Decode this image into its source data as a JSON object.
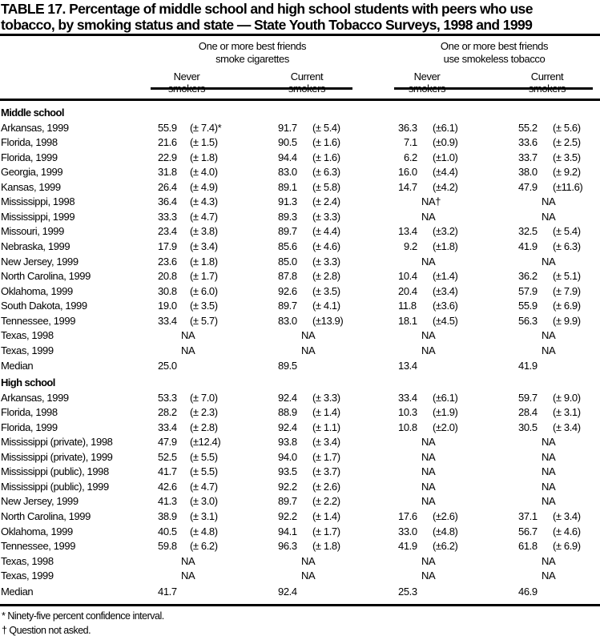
{
  "title_line1": "TABLE 17.  Percentage of middle school and high school students with peers who use",
  "title_line2": "tobacco, by smoking status and state — State Youth Tobacco Surveys, 1998 and 1999",
  "group_headers": [
    {
      "line1": "One or more best friends",
      "line2": "smoke cigarettes"
    },
    {
      "line1": "One or more best friends",
      "line2": "use smokeless tobacco"
    }
  ],
  "column_headers": [
    {
      "top": "Never",
      "bottom": "smokers"
    },
    {
      "top": "Current",
      "bottom": "smokers"
    },
    {
      "top": "Never",
      "bottom": "smokers"
    },
    {
      "top": "Current",
      "bottom": "smokers"
    }
  ],
  "sections": [
    {
      "label": "Middle school",
      "rows": [
        {
          "label": "Arkansas, 1999",
          "cells": [
            {
              "v": "55.9",
              "ci": "(± 7.4)*"
            },
            {
              "v": "91.7",
              "ci": "(± 5.4)"
            },
            {
              "v": "36.3",
              "ci": "(±6.1)"
            },
            {
              "v": "55.2",
              "ci": "(± 5.6)"
            }
          ]
        },
        {
          "label": "Florida, 1998",
          "cells": [
            {
              "v": "21.6",
              "ci": "(± 1.5)"
            },
            {
              "v": "90.5",
              "ci": "(± 1.6)"
            },
            {
              "v": "7.1",
              "ci": "(±0.9)"
            },
            {
              "v": "33.6",
              "ci": "(± 2.5)"
            }
          ]
        },
        {
          "label": "Florida, 1999",
          "cells": [
            {
              "v": "22.9",
              "ci": "(± 1.8)"
            },
            {
              "v": "94.4",
              "ci": "(± 1.6)"
            },
            {
              "v": "6.2",
              "ci": "(±1.0)"
            },
            {
              "v": "33.7",
              "ci": "(± 3.5)"
            }
          ]
        },
        {
          "label": "Georgia, 1999",
          "cells": [
            {
              "v": "31.8",
              "ci": "(± 4.0)"
            },
            {
              "v": "83.0",
              "ci": "(± 6.3)"
            },
            {
              "v": "16.0",
              "ci": "(±4.4)"
            },
            {
              "v": "38.0",
              "ci": "(± 9.2)"
            }
          ]
        },
        {
          "label": "Kansas, 1999",
          "cells": [
            {
              "v": "26.4",
              "ci": "(± 4.9)"
            },
            {
              "v": "89.1",
              "ci": "(± 5.8)"
            },
            {
              "v": "14.7",
              "ci": "(±4.2)"
            },
            {
              "v": "47.9",
              "ci": "(±11.6)"
            }
          ]
        },
        {
          "label": "Mississippi, 1998",
          "cells": [
            {
              "v": "36.4",
              "ci": "(± 4.3)"
            },
            {
              "v": "91.3",
              "ci": "(± 2.4)"
            },
            {
              "na": "NA†"
            },
            {
              "na": "NA"
            }
          ]
        },
        {
          "label": "Mississippi, 1999",
          "cells": [
            {
              "v": "33.3",
              "ci": "(± 4.7)"
            },
            {
              "v": "89.3",
              "ci": "(± 3.3)"
            },
            {
              "na": "NA"
            },
            {
              "na": "NA"
            }
          ]
        },
        {
          "label": "Missouri, 1999",
          "cells": [
            {
              "v": "23.4",
              "ci": "(± 3.8)"
            },
            {
              "v": "89.7",
              "ci": "(± 4.4)"
            },
            {
              "v": "13.4",
              "ci": "(±3.2)"
            },
            {
              "v": "32.5",
              "ci": "(± 5.4)"
            }
          ]
        },
        {
          "label": "Nebraska, 1999",
          "cells": [
            {
              "v": "17.9",
              "ci": "(± 3.4)"
            },
            {
              "v": "85.6",
              "ci": "(± 4.6)"
            },
            {
              "v": "9.2",
              "ci": "(±1.8)"
            },
            {
              "v": "41.9",
              "ci": "(± 6.3)"
            }
          ]
        },
        {
          "label": "New Jersey, 1999",
          "cells": [
            {
              "v": "23.6",
              "ci": "(± 1.8)"
            },
            {
              "v": "85.0",
              "ci": "(± 3.3)"
            },
            {
              "na": "NA"
            },
            {
              "na": "NA"
            }
          ]
        },
        {
          "label": "North Carolina, 1999",
          "cells": [
            {
              "v": "20.8",
              "ci": "(± 1.7)"
            },
            {
              "v": "87.8",
              "ci": "(± 2.8)"
            },
            {
              "v": "10.4",
              "ci": "(±1.4)"
            },
            {
              "v": "36.2",
              "ci": "(± 5.1)"
            }
          ]
        },
        {
          "label": "Oklahoma, 1999",
          "cells": [
            {
              "v": "30.8",
              "ci": "(± 6.0)"
            },
            {
              "v": "92.6",
              "ci": "(± 3.5)"
            },
            {
              "v": "20.4",
              "ci": "(±3.4)"
            },
            {
              "v": "57.9",
              "ci": "(± 7.9)"
            }
          ]
        },
        {
          "label": "South Dakota, 1999",
          "cells": [
            {
              "v": "19.0",
              "ci": "(± 3.5)"
            },
            {
              "v": "89.7",
              "ci": "(± 4.1)"
            },
            {
              "v": "11.8",
              "ci": "(±3.6)"
            },
            {
              "v": "55.9",
              "ci": "(± 6.9)"
            }
          ]
        },
        {
          "label": "Tennessee, 1999",
          "cells": [
            {
              "v": "33.4",
              "ci": "(± 5.7)"
            },
            {
              "v": "83.0",
              "ci": "(±13.9)"
            },
            {
              "v": "18.1",
              "ci": "(±4.5)"
            },
            {
              "v": "56.3",
              "ci": "(± 9.9)"
            }
          ]
        },
        {
          "label": "Texas, 1998",
          "cells": [
            {
              "na": "NA"
            },
            {
              "na": "NA"
            },
            {
              "na": "NA"
            },
            {
              "na": "NA"
            }
          ]
        },
        {
          "label": "Texas, 1999",
          "cells": [
            {
              "na": "NA"
            },
            {
              "na": "NA"
            },
            {
              "na": "NA"
            },
            {
              "na": "NA"
            }
          ]
        },
        {
          "label": "Median",
          "cells": [
            {
              "v": "25.0"
            },
            {
              "v": "89.5"
            },
            {
              "v": "13.4"
            },
            {
              "v": "41.9"
            }
          ]
        }
      ]
    },
    {
      "label": "High school",
      "rows": [
        {
          "label": "Arkansas, 1999",
          "cells": [
            {
              "v": "53.3",
              "ci": "(± 7.0)"
            },
            {
              "v": "92.4",
              "ci": "(± 3.3)"
            },
            {
              "v": "33.4",
              "ci": "(±6.1)"
            },
            {
              "v": "59.7",
              "ci": "(± 9.0)"
            }
          ]
        },
        {
          "label": "Florida, 1998",
          "cells": [
            {
              "v": "28.2",
              "ci": "(± 2.3)"
            },
            {
              "v": "88.9",
              "ci": "(± 1.4)"
            },
            {
              "v": "10.3",
              "ci": "(±1.9)"
            },
            {
              "v": "28.4",
              "ci": "(± 3.1)"
            }
          ]
        },
        {
          "label": "Florida, 1999",
          "cells": [
            {
              "v": "33.4",
              "ci": "(± 2.8)"
            },
            {
              "v": "92.4",
              "ci": "(± 1.1)"
            },
            {
              "v": "10.8",
              "ci": "(±2.0)"
            },
            {
              "v": "30.5",
              "ci": "(± 3.4)"
            }
          ]
        },
        {
          "label": "Mississippi (private), 1998",
          "cells": [
            {
              "v": "47.9",
              "ci": "(±12.4)"
            },
            {
              "v": "93.8",
              "ci": "(± 3.4)"
            },
            {
              "na": "NA"
            },
            {
              "na": "NA"
            }
          ]
        },
        {
          "label": "Mississippi (private), 1999",
          "cells": [
            {
              "v": "52.5",
              "ci": "(± 5.5)"
            },
            {
              "v": "94.0",
              "ci": "(± 1.7)"
            },
            {
              "na": "NA"
            },
            {
              "na": "NA"
            }
          ]
        },
        {
          "label": "Mississippi (public), 1998",
          "cells": [
            {
              "v": "41.7",
              "ci": "(± 5.5)"
            },
            {
              "v": "93.5",
              "ci": "(± 3.7)"
            },
            {
              "na": "NA"
            },
            {
              "na": "NA"
            }
          ]
        },
        {
          "label": "Mississippi (public), 1999",
          "cells": [
            {
              "v": "42.6",
              "ci": "(± 4.7)"
            },
            {
              "v": "92.2",
              "ci": "(± 2.6)"
            },
            {
              "na": "NA"
            },
            {
              "na": "NA"
            }
          ]
        },
        {
          "label": "New Jersey, 1999",
          "cells": [
            {
              "v": "41.3",
              "ci": "(± 3.0)"
            },
            {
              "v": "89.7",
              "ci": "(± 2.2)"
            },
            {
              "na": "NA"
            },
            {
              "na": "NA"
            }
          ]
        },
        {
          "label": "North Carolina, 1999",
          "cells": [
            {
              "v": "38.9",
              "ci": "(± 3.1)"
            },
            {
              "v": "92.2",
              "ci": "(± 1.4)"
            },
            {
              "v": "17.6",
              "ci": "(±2.6)"
            },
            {
              "v": "37.1",
              "ci": "(± 3.4)"
            }
          ]
        },
        {
          "label": "Oklahoma, 1999",
          "cells": [
            {
              "v": "40.5",
              "ci": "(± 4.8)"
            },
            {
              "v": "94.1",
              "ci": "(± 1.7)"
            },
            {
              "v": "33.0",
              "ci": "(±4.8)"
            },
            {
              "v": "56.7",
              "ci": "(± 4.6)"
            }
          ]
        },
        {
          "label": "Tennessee, 1999",
          "cells": [
            {
              "v": "59.8",
              "ci": "(± 6.2)"
            },
            {
              "v": "96.3",
              "ci": "(± 1.8)"
            },
            {
              "v": "41.9",
              "ci": "(±6.2)"
            },
            {
              "v": "61.8",
              "ci": "(± 6.9)"
            }
          ]
        },
        {
          "label": "Texas, 1998",
          "cells": [
            {
              "na": "NA"
            },
            {
              "na": "NA"
            },
            {
              "na": "NA"
            },
            {
              "na": "NA"
            }
          ]
        },
        {
          "label": "Texas, 1999",
          "cells": [
            {
              "na": "NA"
            },
            {
              "na": "NA"
            },
            {
              "na": "NA"
            },
            {
              "na": "NA"
            }
          ]
        },
        {
          "label": "Median",
          "cells": [
            {
              "v": "41.7"
            },
            {
              "v": "92.4"
            },
            {
              "v": "25.3"
            },
            {
              "v": "46.9"
            }
          ]
        }
      ]
    }
  ],
  "footnotes": [
    "*  Ninety-five percent confidence interval.",
    "†  Question not asked."
  ]
}
